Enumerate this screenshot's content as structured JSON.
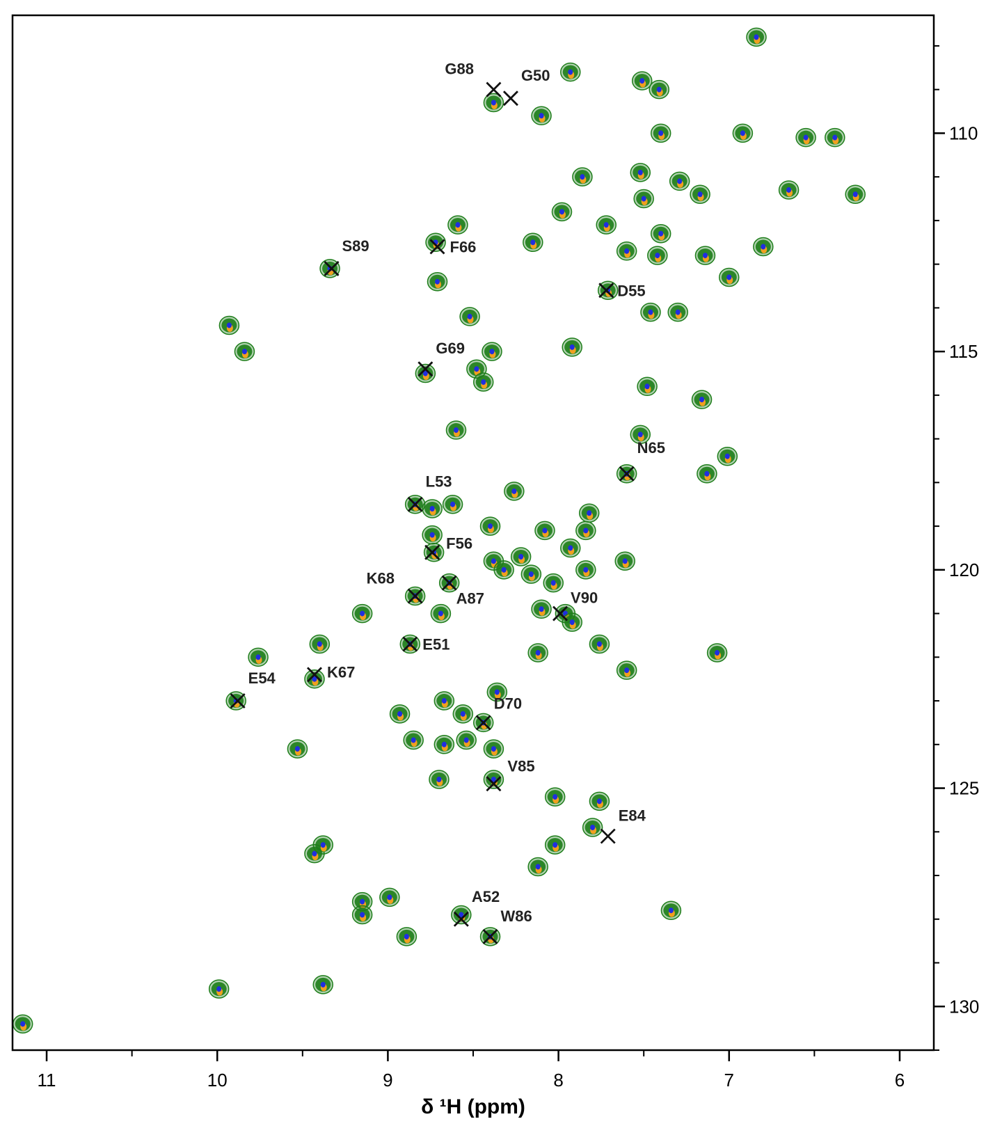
{
  "chart_data": {
    "type": "scatter",
    "title": "",
    "xlabel": "δ ¹H (ppm)",
    "ylabel": "",
    "xlim": [
      11.2,
      5.8
    ],
    "ylim": [
      131.0,
      107.3
    ],
    "x_reversed": true,
    "y_reversed": true,
    "x_ticks": [
      11,
      10,
      9,
      8,
      7,
      6
    ],
    "x_ticklabels": [
      "11",
      "10",
      "9",
      "8",
      "7",
      "6"
    ],
    "x_minor_step": 0.5,
    "y_ticks": [
      110,
      115,
      120,
      125,
      130
    ],
    "y_ticklabels": [
      "110",
      "115",
      "120",
      "125",
      "130"
    ],
    "y_minor_step": 1,
    "y_axis_side": "right",
    "grid": false,
    "legend": "none",
    "colors": {
      "contour_green": "#1e7d1a",
      "contour_blue": "#1f2fe0",
      "contour_orange": "#f0a020",
      "marker": "#111111",
      "axis": "#000000"
    },
    "peaks": [
      {
        "x": 6.84,
        "y": 107.8
      },
      {
        "x": 7.93,
        "y": 108.6
      },
      {
        "x": 7.51,
        "y": 108.8
      },
      {
        "x": 7.41,
        "y": 109.0
      },
      {
        "x": 8.38,
        "y": 109.3
      },
      {
        "x": 8.1,
        "y": 109.6
      },
      {
        "x": 7.4,
        "y": 110.0
      },
      {
        "x": 6.92,
        "y": 110.0
      },
      {
        "x": 6.55,
        "y": 110.1
      },
      {
        "x": 6.38,
        "y": 110.1
      },
      {
        "x": 7.86,
        "y": 111.0
      },
      {
        "x": 7.52,
        "y": 110.9
      },
      {
        "x": 7.29,
        "y": 111.1
      },
      {
        "x": 7.5,
        "y": 111.5
      },
      {
        "x": 7.17,
        "y": 111.4
      },
      {
        "x": 6.65,
        "y": 111.3
      },
      {
        "x": 6.26,
        "y": 111.4
      },
      {
        "x": 7.98,
        "y": 111.8
      },
      {
        "x": 7.72,
        "y": 112.1
      },
      {
        "x": 8.59,
        "y": 112.1
      },
      {
        "x": 7.4,
        "y": 112.3
      },
      {
        "x": 8.72,
        "y": 112.5
      },
      {
        "x": 8.15,
        "y": 112.5
      },
      {
        "x": 7.6,
        "y": 112.7
      },
      {
        "x": 7.42,
        "y": 112.8
      },
      {
        "x": 7.14,
        "y": 112.8
      },
      {
        "x": 6.8,
        "y": 112.6
      },
      {
        "x": 8.71,
        "y": 113.4
      },
      {
        "x": 7.0,
        "y": 113.3
      },
      {
        "x": 9.34,
        "y": 113.1
      },
      {
        "x": 7.71,
        "y": 113.6
      },
      {
        "x": 7.46,
        "y": 114.1
      },
      {
        "x": 7.3,
        "y": 114.1
      },
      {
        "x": 8.52,
        "y": 114.2
      },
      {
        "x": 9.93,
        "y": 114.4
      },
      {
        "x": 9.84,
        "y": 115.0
      },
      {
        "x": 8.39,
        "y": 115.0
      },
      {
        "x": 7.92,
        "y": 114.9
      },
      {
        "x": 8.78,
        "y": 115.5
      },
      {
        "x": 8.48,
        "y": 115.4
      },
      {
        "x": 8.44,
        "y": 115.7
      },
      {
        "x": 7.48,
        "y": 115.8
      },
      {
        "x": 7.16,
        "y": 116.1
      },
      {
        "x": 8.6,
        "y": 116.8
      },
      {
        "x": 7.52,
        "y": 116.9
      },
      {
        "x": 7.01,
        "y": 117.4
      },
      {
        "x": 7.6,
        "y": 117.8
      },
      {
        "x": 7.13,
        "y": 117.8
      },
      {
        "x": 8.26,
        "y": 118.2
      },
      {
        "x": 8.84,
        "y": 118.5
      },
      {
        "x": 8.74,
        "y": 118.6
      },
      {
        "x": 8.62,
        "y": 118.5
      },
      {
        "x": 7.82,
        "y": 118.7
      },
      {
        "x": 8.4,
        "y": 119.0
      },
      {
        "x": 8.08,
        "y": 119.1
      },
      {
        "x": 7.84,
        "y": 119.1
      },
      {
        "x": 8.74,
        "y": 119.2
      },
      {
        "x": 7.93,
        "y": 119.5
      },
      {
        "x": 8.73,
        "y": 119.6
      },
      {
        "x": 8.38,
        "y": 119.8
      },
      {
        "x": 8.22,
        "y": 119.7
      },
      {
        "x": 8.32,
        "y": 120.0
      },
      {
        "x": 7.61,
        "y": 119.8
      },
      {
        "x": 7.84,
        "y": 120.0
      },
      {
        "x": 8.16,
        "y": 120.1
      },
      {
        "x": 8.03,
        "y": 120.3
      },
      {
        "x": 8.64,
        "y": 120.3
      },
      {
        "x": 8.84,
        "y": 120.6
      },
      {
        "x": 9.15,
        "y": 121.0
      },
      {
        "x": 8.69,
        "y": 121.0
      },
      {
        "x": 8.1,
        "y": 120.9
      },
      {
        "x": 7.96,
        "y": 121.0
      },
      {
        "x": 7.92,
        "y": 121.2
      },
      {
        "x": 8.87,
        "y": 121.7
      },
      {
        "x": 9.4,
        "y": 121.7
      },
      {
        "x": 7.76,
        "y": 121.7
      },
      {
        "x": 9.76,
        "y": 122.0
      },
      {
        "x": 8.12,
        "y": 121.9
      },
      {
        "x": 7.07,
        "y": 121.9
      },
      {
        "x": 7.6,
        "y": 122.3
      },
      {
        "x": 9.43,
        "y": 122.5
      },
      {
        "x": 9.89,
        "y": 123.0
      },
      {
        "x": 8.67,
        "y": 123.0
      },
      {
        "x": 8.36,
        "y": 122.8
      },
      {
        "x": 8.56,
        "y": 123.3
      },
      {
        "x": 8.93,
        "y": 123.3
      },
      {
        "x": 8.44,
        "y": 123.5
      },
      {
        "x": 8.54,
        "y": 123.9
      },
      {
        "x": 9.53,
        "y": 124.1
      },
      {
        "x": 8.85,
        "y": 123.9
      },
      {
        "x": 8.67,
        "y": 124.0
      },
      {
        "x": 8.38,
        "y": 124.1
      },
      {
        "x": 8.7,
        "y": 124.8
      },
      {
        "x": 8.38,
        "y": 124.8
      },
      {
        "x": 8.02,
        "y": 125.2
      },
      {
        "x": 7.76,
        "y": 125.3
      },
      {
        "x": 7.8,
        "y": 125.9
      },
      {
        "x": 9.43,
        "y": 126.5
      },
      {
        "x": 9.38,
        "y": 126.3
      },
      {
        "x": 8.02,
        "y": 126.3
      },
      {
        "x": 8.12,
        "y": 126.8
      },
      {
        "x": 8.99,
        "y": 127.5
      },
      {
        "x": 9.15,
        "y": 127.6
      },
      {
        "x": 9.15,
        "y": 127.9
      },
      {
        "x": 8.57,
        "y": 127.9
      },
      {
        "x": 7.34,
        "y": 127.8
      },
      {
        "x": 8.89,
        "y": 128.4
      },
      {
        "x": 8.4,
        "y": 128.4
      },
      {
        "x": 9.38,
        "y": 129.5
      },
      {
        "x": 9.99,
        "y": 129.6
      },
      {
        "x": 11.14,
        "y": 130.4
      }
    ],
    "markers": [
      {
        "label": "G88",
        "x": 8.38,
        "y": 109.0
      },
      {
        "label": "G50",
        "x": 8.28,
        "y": 109.2
      },
      {
        "label": "S89",
        "x": 9.33,
        "y": 113.1
      },
      {
        "label": "F66",
        "x": 8.71,
        "y": 112.6
      },
      {
        "label": "D55",
        "x": 7.72,
        "y": 113.6
      },
      {
        "label": "G69",
        "x": 8.78,
        "y": 115.4
      },
      {
        "label": "N65",
        "x": 7.6,
        "y": 117.8
      },
      {
        "label": "L53",
        "x": 8.84,
        "y": 118.5
      },
      {
        "label": "F56",
        "x": 8.74,
        "y": 119.6
      },
      {
        "label": "K68",
        "x": 8.84,
        "y": 120.6
      },
      {
        "label": "A87",
        "x": 8.64,
        "y": 120.3
      },
      {
        "label": "V90",
        "x": 7.99,
        "y": 121.0
      },
      {
        "label": "E51",
        "x": 8.87,
        "y": 121.7
      },
      {
        "label": "K67",
        "x": 9.43,
        "y": 122.4
      },
      {
        "label": "E54",
        "x": 9.88,
        "y": 123.0
      },
      {
        "label": "D70",
        "x": 8.44,
        "y": 123.5
      },
      {
        "label": "V85",
        "x": 8.38,
        "y": 124.9
      },
      {
        "label": "E84",
        "x": 7.71,
        "y": 126.1
      },
      {
        "label": "A52",
        "x": 8.57,
        "y": 128.0
      },
      {
        "label": "W86",
        "x": 8.4,
        "y": 128.4
      }
    ]
  }
}
